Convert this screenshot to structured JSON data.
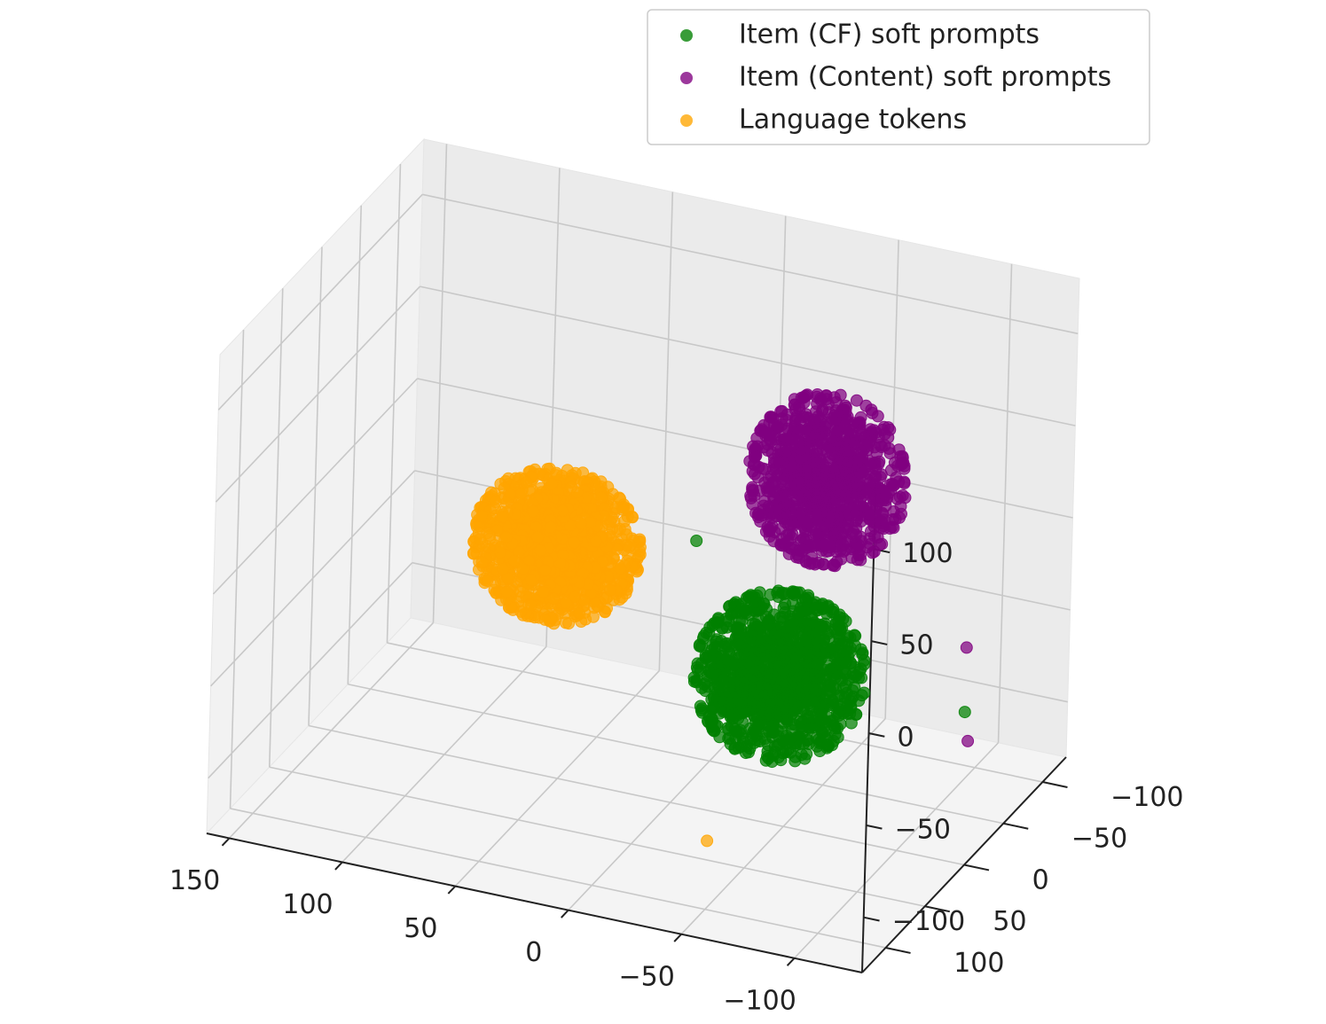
{
  "chart_data": {
    "type": "scatter",
    "dimensions": 3,
    "legend": {
      "placement": "top-right",
      "entries": [
        {
          "name": "Item (CF) soft prompts",
          "color": "#008000"
        },
        {
          "name": "Item (Content) soft prompts",
          "color": "#800080"
        },
        {
          "name": "Language tokens",
          "color": "#FFA500"
        }
      ]
    },
    "x_axis": {
      "ticks": [
        "150",
        "100",
        "50",
        "0",
        "−50",
        "−100"
      ],
      "range": [
        -130,
        160
      ]
    },
    "y_axis": {
      "ticks": [
        "−100",
        "−50",
        "0",
        "50",
        "100"
      ],
      "range": [
        -130,
        130
      ]
    },
    "z_axis": {
      "ticks": [
        "100",
        "50",
        "0",
        "−50",
        "−100"
      ],
      "range": [
        -130,
        130
      ]
    },
    "grid": true,
    "series": [
      {
        "name": "Item (CF) soft prompts",
        "color": "#008000",
        "count": 1200,
        "center": [
          -40,
          -20,
          -60
        ],
        "spread": [
          32,
          38,
          38
        ],
        "outliers": [
          [
            -15,
            20,
            25
          ],
          [
            -105,
            -70,
            -85
          ]
        ]
      },
      {
        "name": "Item (Content) soft prompts",
        "color": "#800080",
        "count": 1000,
        "center": [
          -45,
          -60,
          30
        ],
        "spread": [
          30,
          30,
          40
        ],
        "outliers": [
          [
            -105,
            -70,
            -50
          ],
          [
            -110,
            -60,
            -95
          ]
        ]
      },
      {
        "name": "Language tokens",
        "color": "#FFA500",
        "count": 1200,
        "center": [
          60,
          -20,
          -15
        ],
        "spread": [
          32,
          32,
          35
        ],
        "outliers": [
          [
            -30,
            40,
            -125
          ]
        ]
      }
    ]
  }
}
